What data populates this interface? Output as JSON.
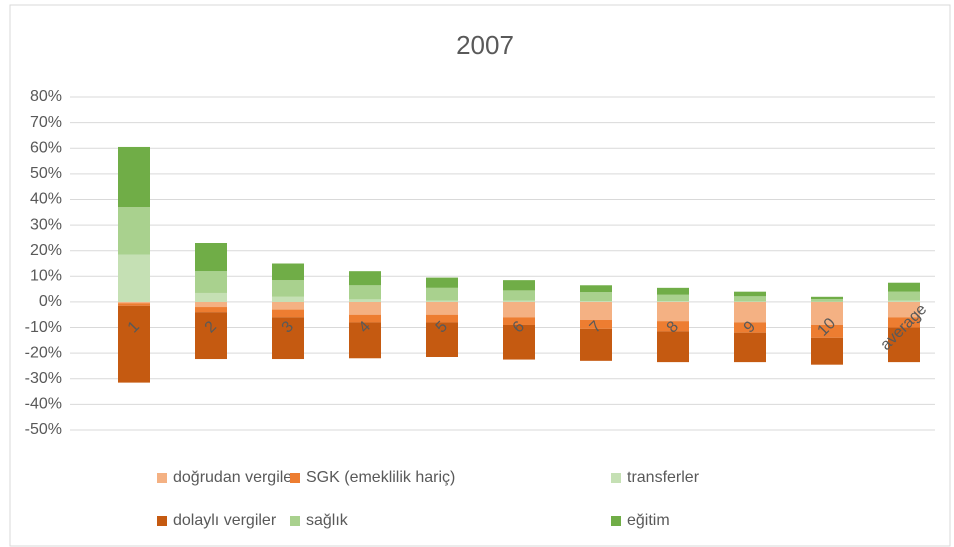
{
  "chart_data": {
    "type": "bar",
    "stacked": true,
    "title": "2007",
    "categories": [
      "1",
      "2",
      "3",
      "4",
      "5",
      "6",
      "7",
      "8",
      "9",
      "10",
      "average"
    ],
    "series": [
      {
        "name": "doğrudan vergiler",
        "color": "#f4b183",
        "values": [
          -0.5,
          -2,
          -3,
          -5,
          -5,
          -6,
          -7,
          -7.5,
          -8,
          -9,
          -6
        ]
      },
      {
        "name": "SGK (emeklilik hariç)",
        "color": "#ed7d31",
        "values": [
          -1,
          -2,
          -3,
          -3,
          -3,
          -3,
          -3.5,
          -4,
          -4,
          -5,
          -4
        ]
      },
      {
        "name": "transferler",
        "color": "#c5e0b4",
        "values": [
          18.5,
          3.5,
          2,
          1,
          0.5,
          0.5,
          0.3,
          0.3,
          0.2,
          0.1,
          0.5
        ]
      },
      {
        "name": "dolaylı vergiler",
        "color": "#c55a11",
        "values": [
          -30,
          -18.3,
          -16.3,
          -14,
          -13.5,
          -13.5,
          -12.5,
          -12,
          -11.5,
          -10.5,
          -13.5
        ]
      },
      {
        "name": "sağlık",
        "color": "#a9d18e",
        "values": [
          18.5,
          8.5,
          6.5,
          5.5,
          5,
          4,
          3.5,
          2.5,
          2,
          1,
          3.5
        ]
      },
      {
        "name": "eğitim",
        "color": "#70ad47",
        "values": [
          23.5,
          11,
          6.5,
          5.5,
          4,
          4,
          2.7,
          2.7,
          1.8,
          0.9,
          3.5
        ]
      }
    ],
    "ylim": [
      -50,
      80
    ],
    "yticks": [
      {
        "value": -50,
        "label": "-50%"
      },
      {
        "value": -40,
        "label": "-40%"
      },
      {
        "value": -30,
        "label": "-30%"
      },
      {
        "value": -20,
        "label": "-20%"
      },
      {
        "value": -10,
        "label": "-10%"
      },
      {
        "value": 0,
        "label": "0%"
      },
      {
        "value": 10,
        "label": "10%"
      },
      {
        "value": 20,
        "label": "20%"
      },
      {
        "value": 30,
        "label": "30%"
      },
      {
        "value": 40,
        "label": "40%"
      },
      {
        "value": 50,
        "label": "50%"
      },
      {
        "value": 60,
        "label": "60%"
      },
      {
        "value": 70,
        "label": "70%"
      },
      {
        "value": 80,
        "label": "80%"
      }
    ],
    "grid": true,
    "legend": "bottom"
  }
}
